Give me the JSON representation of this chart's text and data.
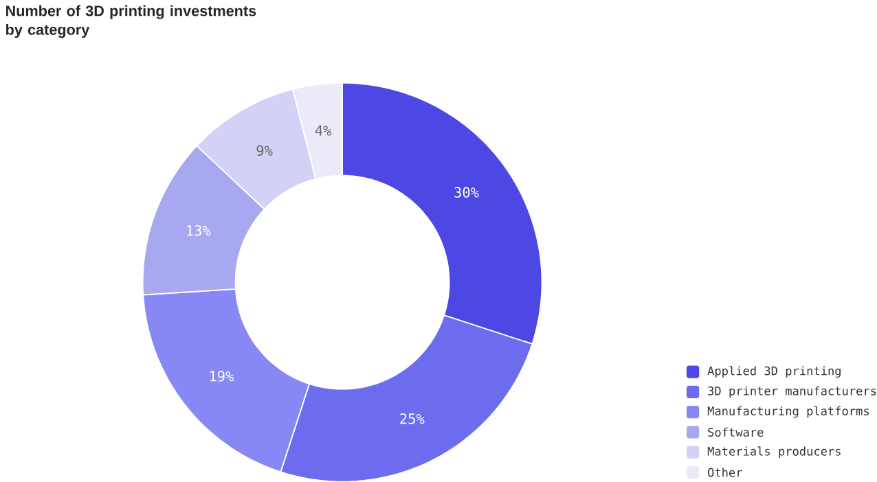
{
  "chart_data": {
    "type": "donut",
    "title": "Number of 3D printing investments by category",
    "categories": [
      "Applied 3D printing",
      "3D printer manufacturers",
      "Manufacturing platforms",
      "Software",
      "Materials producers",
      "Other"
    ],
    "values": [
      30,
      25,
      19,
      13,
      9,
      4
    ],
    "colors": [
      "#4d47e3",
      "#6d6cef",
      "#8788f4",
      "#a7a8f0",
      "#d2d2f6",
      "#ebebf8"
    ],
    "value_labels": [
      "30%",
      "25%",
      "19%",
      "13%",
      "9%",
      "4%"
    ],
    "legend": "bottom right"
  }
}
